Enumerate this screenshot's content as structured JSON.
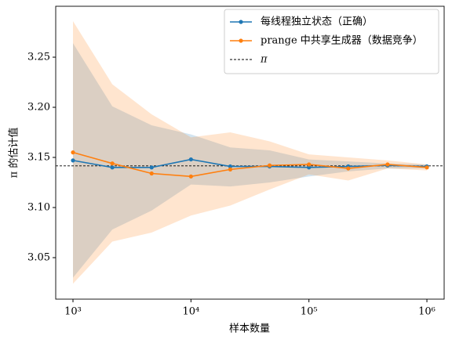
{
  "chart_data": {
    "type": "line",
    "xlabel": "样本数量",
    "ylabel": "π 的估计值",
    "xscale": "log",
    "x": [
      1000,
      2154,
      4642,
      10000,
      21544,
      46416,
      100000,
      215443,
      464159,
      1000000
    ],
    "xlim": [
      714,
      1400000
    ],
    "xticks": [
      {
        "value": 1000,
        "label": "10³"
      },
      {
        "value": 10000,
        "label": "10⁴"
      },
      {
        "value": 100000,
        "label": "10⁵"
      },
      {
        "value": 1000000,
        "label": "10⁶"
      }
    ],
    "ylim": [
      3.0086,
      3.3008
    ],
    "yticks": [
      3.05,
      {
        "value": 3.1,
        "label": "3.10"
      },
      3.15,
      {
        "value": 3.2,
        "label": "3.20"
      },
      3.25
    ],
    "legend": "upper right",
    "series": [
      {
        "name": "每线程独立状态（正确）",
        "color": "#1f77b4",
        "values": [
          3.147,
          3.14,
          3.14,
          3.148,
          3.141,
          3.141,
          3.14,
          3.141,
          3.142,
          3.141
        ],
        "upper": [
          3.264,
          3.201,
          3.182,
          3.173,
          3.16,
          3.157,
          3.148,
          3.146,
          3.144,
          3.143
        ],
        "lower": [
          3.03,
          3.078,
          3.097,
          3.123,
          3.121,
          3.125,
          3.131,
          3.136,
          3.139,
          3.139
        ]
      },
      {
        "name": "prange 中共享生成器（数据竞争）",
        "color": "#ff7f0e",
        "values": [
          3.155,
          3.144,
          3.134,
          3.131,
          3.138,
          3.142,
          3.143,
          3.139,
          3.143,
          3.14
        ],
        "upper": [
          3.286,
          3.223,
          3.193,
          3.17,
          3.175,
          3.166,
          3.153,
          3.15,
          3.147,
          3.143
        ],
        "lower": [
          3.024,
          3.066,
          3.075,
          3.092,
          3.102,
          3.118,
          3.133,
          3.127,
          3.139,
          3.137
        ]
      }
    ],
    "hline": {
      "value": 3.14159,
      "label": "π",
      "color": "#000000"
    }
  }
}
